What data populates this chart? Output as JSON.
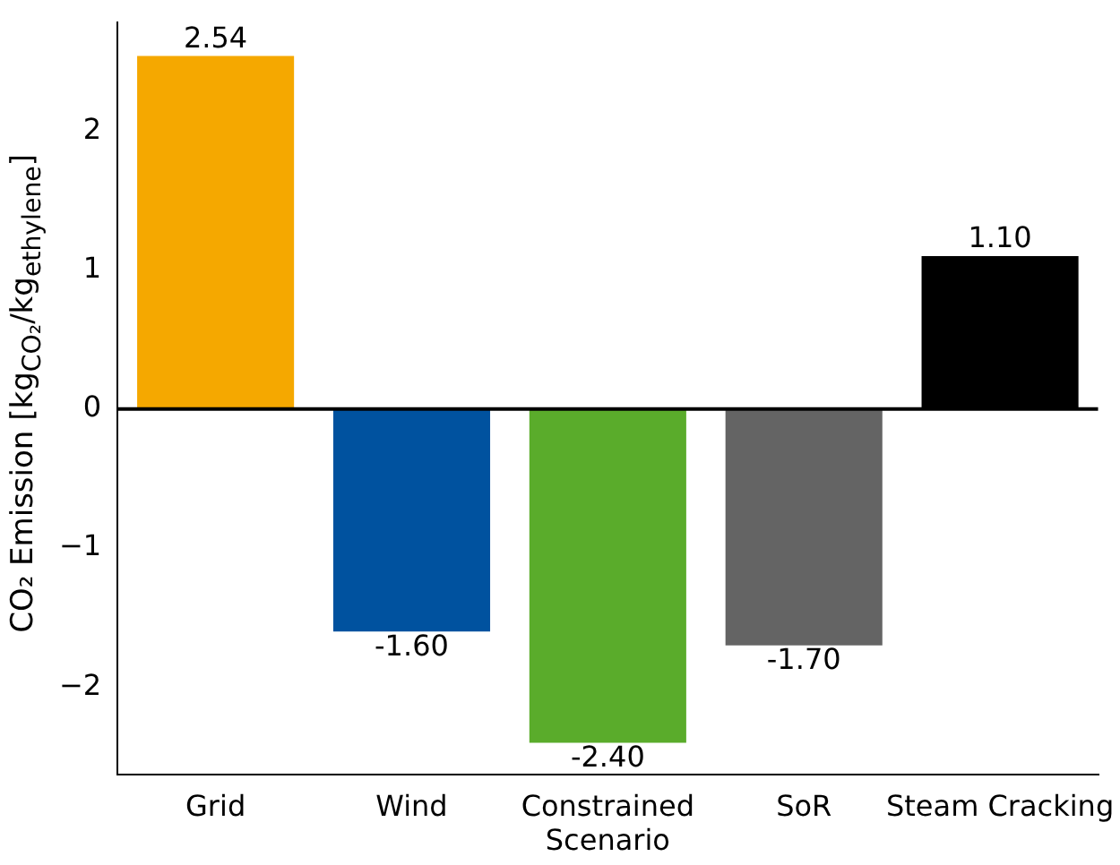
{
  "chart_data": {
    "type": "bar",
    "ylabel": "CO₂ Emission [kg$_{CO₂}$/kg$_{ethylene}$]",
    "categories": [
      "Grid",
      "Wind",
      "Constrained Scenario",
      "SoR",
      "Steam Cracking"
    ],
    "values": [
      2.54,
      -1.6,
      -2.4,
      -1.7,
      1.1
    ],
    "colors": [
      "#f5a800",
      "#00529f",
      "#5aac2b",
      "#646464",
      "#000000"
    ],
    "value_labels": [
      "2.54",
      "-1.60",
      "-2.40",
      "-1.70",
      "1.10"
    ],
    "ylim": [
      -2.63,
      2.78
    ],
    "yticks": [
      {
        "value": -2,
        "label": "−2"
      },
      {
        "value": -1,
        "label": "−1"
      },
      0,
      1,
      2
    ],
    "ref_lines": [
      {
        "axis": "y",
        "value": 0,
        "color": "#000000"
      }
    ],
    "grid": false,
    "legend": false
  }
}
